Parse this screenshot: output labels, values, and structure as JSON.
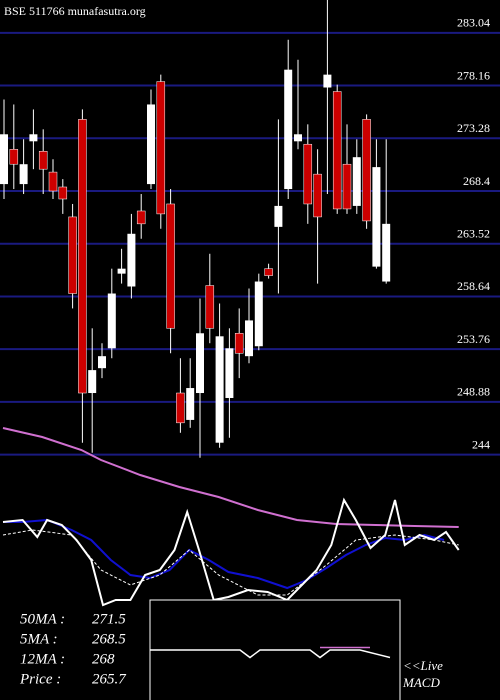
{
  "chart_data": [
    {
      "type": "candlestick",
      "title": "BSE 511766 munafasutra.org",
      "up_color": "#ffffff",
      "down_color": "#cc0000",
      "grid_color": "#1a1a80",
      "ylim": [
        243.5,
        286.08
      ],
      "yticks": [
        283.04,
        278.16,
        273.28,
        268.4,
        263.52,
        258.64,
        253.76,
        248.88,
        244
      ],
      "open": [
        269.04,
        272.26,
        269.04,
        273.0,
        272.08,
        270.15,
        268.77,
        266.0,
        275.03,
        249.7,
        252.0,
        253.84,
        260.75,
        259.56,
        266.55,
        269.04,
        278.53,
        267.2,
        249.7,
        247.21,
        249.7,
        259.65,
        245.1,
        249.24,
        255.23,
        253.11,
        254.03,
        261.21,
        265.08,
        268.58,
        273.0,
        272.73,
        269.96,
        277.98,
        277.61,
        270.88,
        267.02,
        275.03,
        261.4,
        260.02
      ],
      "high": [
        276.87,
        276.41,
        273.19,
        275.95,
        274.11,
        271.34,
        269.5,
        267.2,
        275.95,
        255.69,
        254.31,
        261.21,
        263.05,
        266.28,
        268.12,
        277.79,
        279.17,
        268.58,
        252.92,
        252.92,
        258.45,
        262.59,
        257.99,
        255.69,
        257.53,
        259.37,
        260.75,
        261.67,
        275.03,
        282.4,
        280.55,
        274.57,
        272.26,
        286.08,
        278.25,
        274.57,
        273.19,
        275.49,
        273.19,
        273.19
      ],
      "low": [
        267.66,
        268.58,
        268.12,
        270.42,
        268.12,
        267.66,
        266.28,
        257.53,
        245.1,
        244.17,
        251.08,
        252.92,
        259.83,
        258.45,
        263.98,
        268.58,
        264.9,
        253.38,
        246.02,
        246.48,
        243.71,
        254.31,
        244.63,
        245.56,
        251.08,
        252.46,
        253.66,
        260.29,
        258.91,
        267.66,
        272.26,
        265.36,
        259.83,
        268.12,
        266.28,
        266.28,
        266.28,
        264.9,
        261.21,
        259.83
      ],
      "close": [
        273.65,
        270.88,
        270.88,
        273.65,
        270.42,
        268.4,
        267.66,
        258.91,
        249.7,
        251.82,
        253.11,
        258.91,
        261.21,
        264.44,
        265.36,
        276.41,
        266.28,
        255.69,
        246.94,
        250.16,
        255.23,
        255.69,
        254.95,
        253.84,
        253.38,
        256.42,
        260.02,
        260.57,
        267.02,
        279.63,
        273.65,
        267.2,
        266.0,
        279.17,
        266.74,
        266.74,
        271.53,
        265.63,
        270.61,
        265.36
      ]
    },
    {
      "type": "line",
      "ylim": [
        0,
        100
      ],
      "xlim": [
        0,
        50
      ],
      "series": [
        {
          "color": "#d070d0",
          "x": [
            0,
            4,
            8,
            10,
            14,
            18,
            22,
            26,
            30,
            34,
            38,
            42,
            46.5
          ],
          "values": [
            96,
            91.5,
            85,
            80,
            72.5,
            66.5,
            61.5,
            55,
            50,
            48,
            47.5,
            47,
            46.5
          ]
        },
        {
          "color": "#1010d0",
          "x": [
            0,
            2,
            4.5,
            7,
            9,
            11,
            13,
            15,
            17,
            19,
            21,
            23,
            26,
            29,
            31,
            33,
            35,
            37,
            39,
            41,
            43,
            45
          ],
          "values": [
            49,
            49,
            50,
            45,
            40,
            30,
            22.5,
            21,
            25,
            35,
            30,
            24,
            21,
            16,
            20,
            26,
            32.5,
            37.5,
            41,
            40,
            42.5,
            40
          ]
        },
        {
          "color": "#ffffff",
          "x": [
            0,
            2,
            3.5,
            4.5,
            6,
            7.5,
            9,
            10.2,
            11.5,
            13,
            14.5,
            16,
            17.5,
            18.8,
            20,
            21.5,
            23,
            25,
            27,
            29,
            30.5,
            32,
            33.5,
            34.8,
            36,
            37.5,
            39,
            40,
            41,
            42.5,
            44,
            45.2,
            46.5
          ],
          "values": [
            49,
            50,
            41.5,
            50,
            47.5,
            40,
            30,
            7.5,
            10,
            10,
            22.5,
            25,
            35,
            54,
            35,
            10,
            11.5,
            15,
            14,
            10,
            17.5,
            25,
            37.5,
            60,
            50,
            36,
            42.5,
            60,
            37.5,
            42.5,
            40,
            44,
            35
          ]
        },
        {
          "color": "#ffffff",
          "dashed": true,
          "x": [
            0,
            3,
            7,
            10,
            13,
            16,
            19,
            22,
            26,
            29,
            33,
            36,
            40,
            44,
            46.5
          ],
          "values": [
            42.5,
            45,
            42.5,
            25,
            17.5,
            22.5,
            35,
            22.5,
            12.5,
            12.5,
            27.5,
            40,
            42.5,
            40,
            37.5
          ]
        }
      ],
      "stats": [
        {
          "label": "50MA :",
          "value": 271.5
        },
        {
          "label": "5MA :",
          "value": 268.5
        },
        {
          "label": "12MA :",
          "value": 268
        },
        {
          "label": "Price   :",
          "value": 265.7
        }
      ]
    },
    {
      "type": "line",
      "title": "<<Live",
      "subtitle": "MACD",
      "ylim": [
        -1,
        1
      ],
      "xlim": [
        0,
        25
      ],
      "series": [
        {
          "color": "#ffffff",
          "x": [
            0,
            9,
            10,
            11,
            16,
            17,
            18,
            21,
            24
          ],
          "values": [
            0,
            0,
            -0.15,
            0,
            0,
            -0.15,
            0,
            0,
            -0.15
          ]
        },
        {
          "color": "#d070d0",
          "x": [
            17,
            22
          ],
          "values": [
            0.05,
            0.05
          ]
        }
      ]
    }
  ]
}
